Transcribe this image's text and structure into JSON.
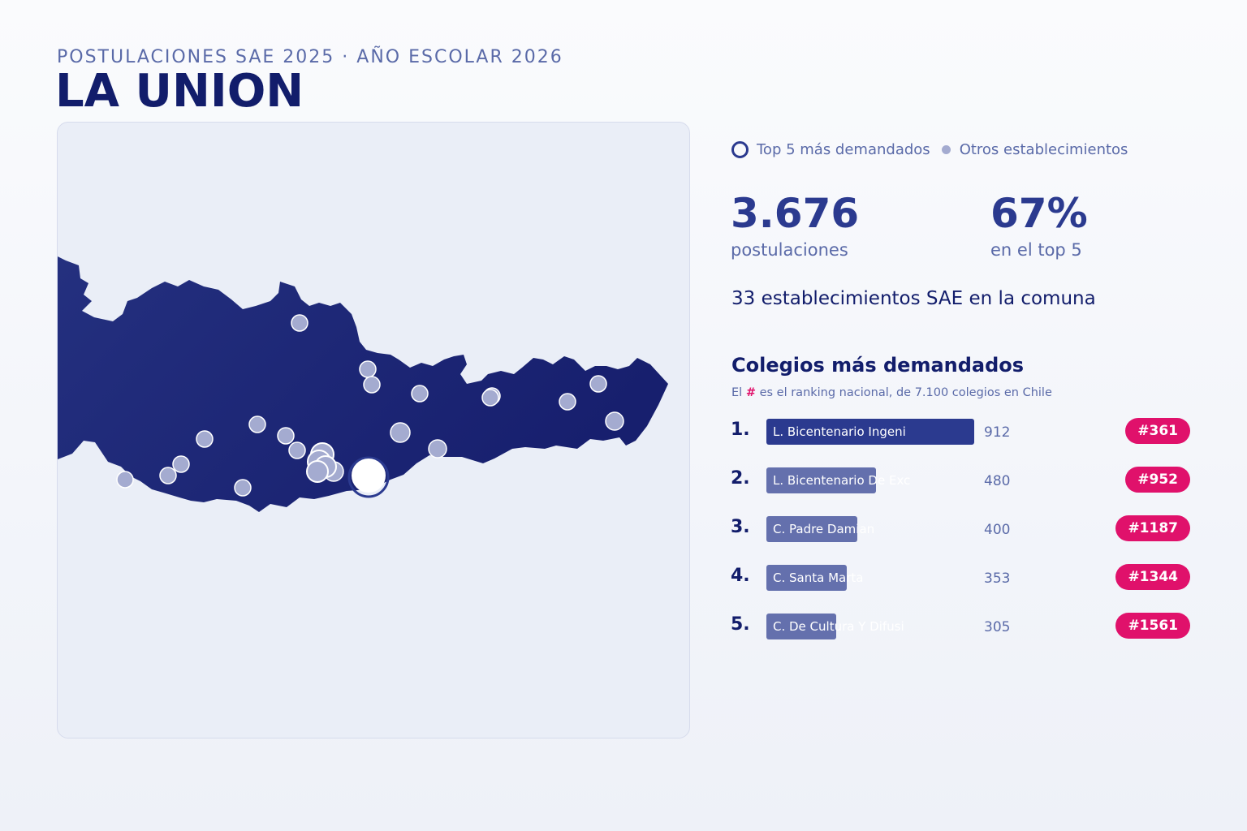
{
  "header": {
    "kicker": "POSTULACIONES SAE 2025 · AÑO ESCOLAR 2026",
    "title": "LA UNION"
  },
  "legend": {
    "top5_label": "Top 5 más demandados",
    "others_label": "Otros establecimientos"
  },
  "stats": {
    "postulaciones_value": "3.676",
    "postulaciones_label": "postulaciones",
    "top5_share_value": "67%",
    "top5_share_label": "en el top 5",
    "schools_count_text": "33 establecimientos SAE en la comuna"
  },
  "ranking": {
    "title": "Colegios más demandados",
    "note_prefix": "El ",
    "note_hash": "#",
    "note_suffix": " es el ranking nacional, de 7.100 colegios en Chile",
    "max_value": 912,
    "items": [
      {
        "rank": "1.",
        "name": "L. Bicentenario Ingeni",
        "value": 912,
        "value_label": "912",
        "national_rank": "#361"
      },
      {
        "rank": "2.",
        "name": "L. Bicentenario De Exc",
        "value": 480,
        "value_label": "480",
        "national_rank": "#952"
      },
      {
        "rank": "3.",
        "name": "C. Padre Damian",
        "value": 400,
        "value_label": "400",
        "national_rank": "#1187"
      },
      {
        "rank": "4.",
        "name": "C. Santa Marta",
        "value": 353,
        "value_label": "353",
        "national_rank": "#1344"
      },
      {
        "rank": "5.",
        "name": "C. De Cultura Y Difusi",
        "value": 305,
        "value_label": "305",
        "national_rank": "#1561"
      }
    ]
  },
  "colors": {
    "navy": "#121d6b",
    "accent": "#2b3a8f",
    "muted": "#5a6aa8",
    "badge": "#e0116b",
    "map_fill": "#1e2a7e",
    "dot_fill": "#a4abd0"
  }
}
